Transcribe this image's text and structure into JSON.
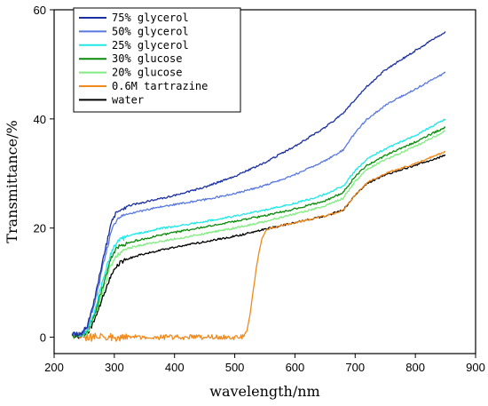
{
  "chart_data": {
    "type": "line",
    "xlabel": "wavelength/nm",
    "ylabel": "Transmittance/%",
    "xlim": [
      200,
      900
    ],
    "ylim": [
      -3,
      60
    ],
    "xticks": [
      200,
      300,
      400,
      500,
      600,
      700,
      800,
      900
    ],
    "yticks": [
      0,
      20,
      40,
      60
    ],
    "grid": false,
    "legend_position": "top-left",
    "series": [
      {
        "name": "75% glycerol",
        "color": "#1a2fa0",
        "x": [
          230,
          245,
          255,
          265,
          275,
          285,
          295,
          305,
          320,
          340,
          360,
          380,
          400,
          450,
          500,
          550,
          600,
          650,
          680,
          700,
          720,
          750,
          800,
          850
        ],
        "y": [
          0.5,
          0.5,
          2,
          6,
          11,
          16,
          21,
          23,
          24,
          24.5,
          25,
          25.5,
          26,
          27.5,
          29.5,
          32,
          35,
          38.5,
          41,
          43.5,
          46,
          49,
          52.5,
          56
        ]
      },
      {
        "name": "50% glycerol",
        "color": "#5878e0",
        "x": [
          230,
          245,
          255,
          265,
          275,
          285,
          295,
          305,
          320,
          340,
          360,
          380,
          400,
          450,
          500,
          550,
          600,
          650,
          680,
          700,
          720,
          750,
          800,
          850
        ],
        "y": [
          0.5,
          0.5,
          2,
          5.5,
          10,
          15,
          19.5,
          21.5,
          22.5,
          23,
          23.5,
          24,
          24.3,
          25.2,
          26.3,
          27.8,
          29.8,
          32.3,
          34.3,
          37.5,
          40,
          42.5,
          45.5,
          48.5
        ]
      },
      {
        "name": "25% glycerol",
        "color": "#1ee8e8",
        "x": [
          230,
          245,
          255,
          265,
          275,
          285,
          295,
          305,
          320,
          340,
          360,
          380,
          400,
          450,
          500,
          550,
          600,
          650,
          680,
          700,
          720,
          750,
          800,
          850
        ],
        "y": [
          0.5,
          0.5,
          1.5,
          4,
          8,
          12,
          15.5,
          17.5,
          18.5,
          19,
          19.5,
          20,
          20.3,
          21.2,
          22.2,
          23.3,
          24.5,
          26.2,
          27.7,
          30.5,
          32.7,
          34.5,
          37,
          40
        ]
      },
      {
        "name": "30% glucose",
        "color": "#0a8a0a",
        "x": [
          230,
          245,
          255,
          265,
          275,
          285,
          295,
          305,
          320,
          340,
          360,
          380,
          400,
          450,
          500,
          550,
          600,
          650,
          680,
          700,
          720,
          750,
          800,
          850
        ],
        "y": [
          0.3,
          0.3,
          1.2,
          3.5,
          7,
          11,
          14.5,
          16.3,
          17.3,
          17.8,
          18.3,
          18.8,
          19.2,
          20.2,
          21.2,
          22.3,
          23.5,
          25,
          26.5,
          29.5,
          31.5,
          33.3,
          35.8,
          38.5
        ]
      },
      {
        "name": "20% glucose",
        "color": "#80ec80",
        "x": [
          230,
          245,
          255,
          265,
          275,
          285,
          295,
          305,
          320,
          340,
          360,
          380,
          400,
          450,
          500,
          550,
          600,
          650,
          680,
          700,
          720,
          750,
          800,
          850
        ],
        "y": [
          0.3,
          0.3,
          1,
          3,
          6.3,
          10,
          13.3,
          15.2,
          16.2,
          16.8,
          17.2,
          17.6,
          18,
          19,
          20,
          21.2,
          22.6,
          24,
          25.5,
          28.5,
          30.8,
          32.5,
          35,
          37.8
        ]
      },
      {
        "name": "0.6M tartrazine",
        "color": "#f08a1c",
        "x": [
          230,
          250,
          300,
          350,
          400,
          450,
          500,
          515,
          520,
          525,
          530,
          535,
          540,
          545,
          550,
          555,
          560,
          570,
          600,
          650,
          680,
          700,
          720,
          750,
          800,
          850
        ],
        "y": [
          0.3,
          0,
          0,
          0,
          0,
          0,
          0,
          0.2,
          1.2,
          4,
          8,
          12,
          15.5,
          18,
          19.3,
          19.8,
          20,
          20.3,
          21,
          22.2,
          23.2,
          26,
          28.3,
          30,
          31.8,
          34
        ]
      },
      {
        "name": "water",
        "color": "#000000",
        "x": [
          230,
          245,
          255,
          265,
          275,
          285,
          295,
          305,
          320,
          340,
          360,
          380,
          400,
          450,
          500,
          550,
          600,
          650,
          680,
          700,
          720,
          750,
          800,
          850
        ],
        "y": [
          0.2,
          0.2,
          0.8,
          2.5,
          5.5,
          8.5,
          11.5,
          13.3,
          14.3,
          15,
          15.5,
          16,
          16.5,
          17.5,
          18.5,
          19.8,
          21,
          22.2,
          23.3,
          26,
          28.2,
          29.8,
          31.5,
          33.3
        ]
      }
    ]
  }
}
